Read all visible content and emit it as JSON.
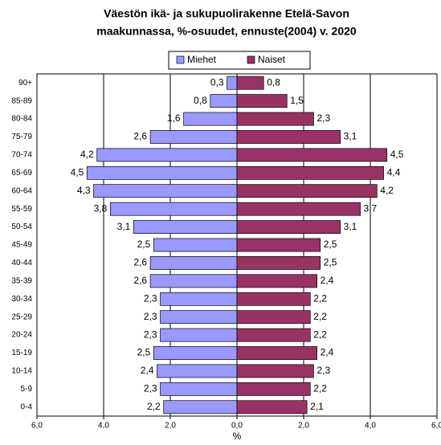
{
  "chart_data": {
    "type": "pyramid",
    "title": [
      "Väestön ikä- ja sukupuolirakenne Etelä-Savon",
      "maakunnassa, %-osuudet, ennuste(2004)  v. 2020"
    ],
    "x_label": "%",
    "categories": [
      "90+",
      "85-89",
      "80-84",
      "75-79",
      "70-74",
      "65-69",
      "60-64",
      "55-59",
      "50-54",
      "45-49",
      "40-44",
      "35-39",
      "30-34",
      "25-29",
      "20-24",
      "15-19",
      "10-14",
      "5-9",
      "0-4"
    ],
    "series": [
      {
        "name": "Miehet",
        "color": "#9999ff",
        "side": "left",
        "values": [
          0.3,
          0.8,
          1.6,
          2.6,
          4.2,
          4.5,
          4.3,
          3.8,
          3.1,
          2.5,
          2.6,
          2.6,
          2.3,
          2.3,
          2.3,
          2.5,
          2.4,
          2.3,
          2.2
        ],
        "value_labels": [
          "0,3",
          "0,8",
          "1,6",
          "2,6",
          "4,2",
          "4,5",
          "4,3",
          "3,8",
          "3,1",
          "2,5",
          "2,6",
          "2,6",
          "2,3",
          "2,3",
          "2,3",
          "2,5",
          "2,4",
          "2,3",
          "2,2"
        ]
      },
      {
        "name": "Naiset",
        "color": "#993366",
        "side": "right",
        "values": [
          0.8,
          1.5,
          2.3,
          3.1,
          4.5,
          4.4,
          4.2,
          3.7,
          3.1,
          2.5,
          2.5,
          2.4,
          2.2,
          2.2,
          2.2,
          2.4,
          2.3,
          2.2,
          2.1
        ],
        "value_labels": [
          "0,8",
          "1,5",
          "2,3",
          "3,1",
          "4,5",
          "4,4",
          "4,2",
          "3,7",
          "3,1",
          "2,5",
          "2,5",
          "2,4",
          "2,2",
          "2,2",
          "2,2",
          "2,4",
          "2,3",
          "2,2",
          "2,1"
        ]
      }
    ],
    "xlim": [
      -6,
      6
    ],
    "xticks": [
      {
        "value": -6,
        "label": "6,0"
      },
      {
        "value": -4,
        "label": "4,0"
      },
      {
        "value": -2,
        "label": "2,0"
      },
      {
        "value": 0,
        "label": "0,0"
      },
      {
        "value": 2,
        "label": "2,0"
      },
      {
        "value": 4,
        "label": "4,0"
      },
      {
        "value": 6,
        "label": "6,0"
      }
    ],
    "negative_tick_color": "#ff0000",
    "grid": true,
    "legend": "top"
  }
}
